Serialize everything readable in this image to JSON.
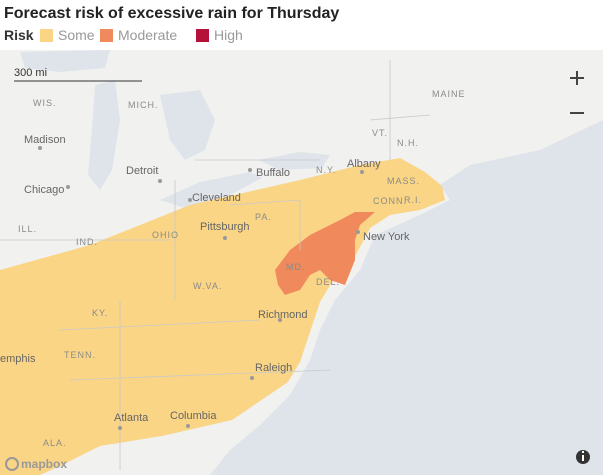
{
  "header": {
    "title": "Forecast risk of excessive rain for Thursday"
  },
  "legend": {
    "title": "Risk",
    "items": [
      {
        "label": "Some",
        "color": "#fad585"
      },
      {
        "label": "Moderate",
        "color": "#f08a5d"
      },
      {
        "label": "High",
        "color": "#b5123a"
      }
    ]
  },
  "scale": {
    "label": "300 mi"
  },
  "labels": {
    "states": [
      "WIS.",
      "MICH.",
      "MAINE",
      "VT.",
      "N.H.",
      "N.Y.",
      "MASS.",
      "CONN.",
      "R.I.",
      "PA.",
      "ILL.",
      "IND.",
      "OHIO",
      "MD.",
      "DEL.",
      "W.VA.",
      "KY.",
      "TENN.",
      "ALA."
    ],
    "cities": [
      "Madison",
      "Detroit",
      "Buffalo",
      "Albany",
      "Chicago",
      "Cleveland",
      "Pittsburgh",
      "New York",
      "Richmond",
      "emphis",
      "Raleigh",
      "Atlanta",
      "Columbia"
    ]
  },
  "attribution": "mapbox"
}
